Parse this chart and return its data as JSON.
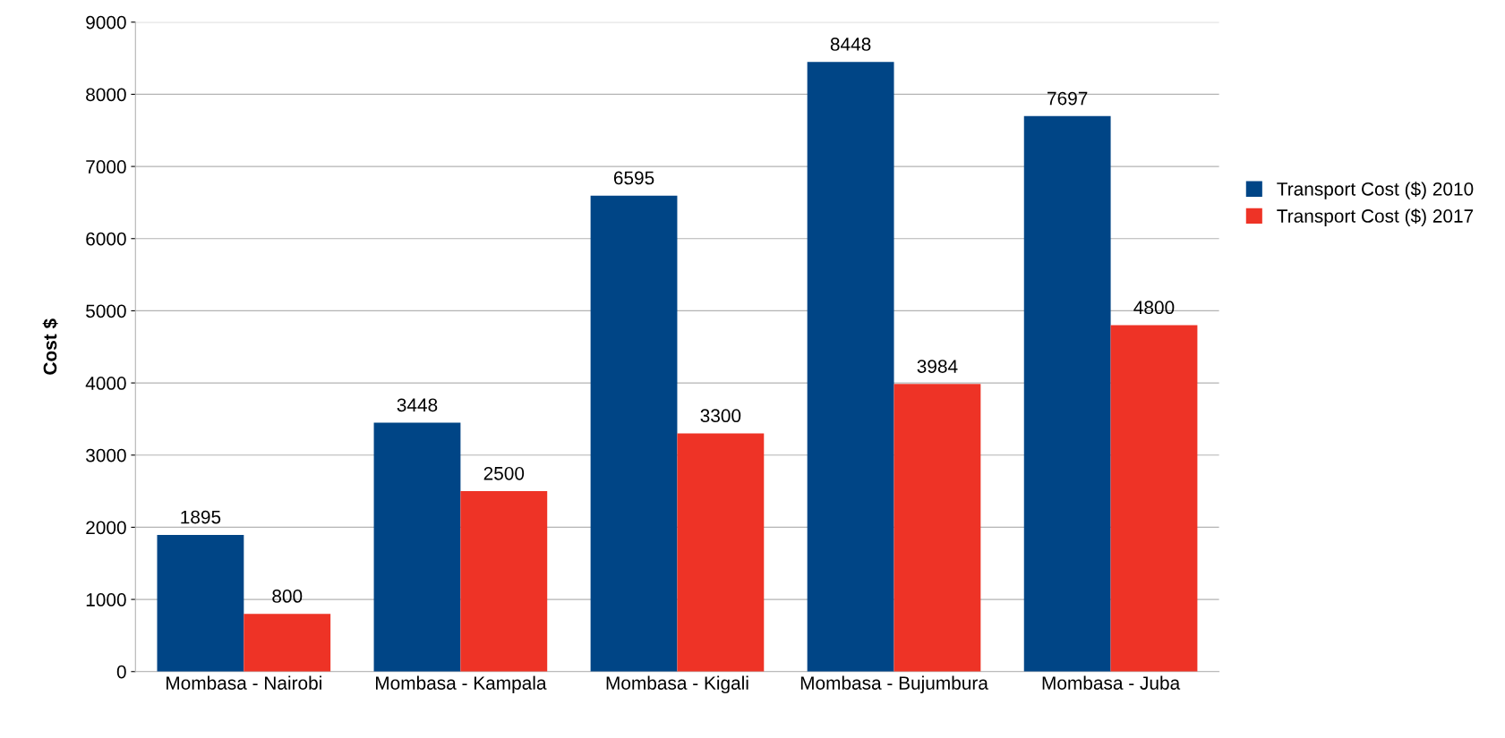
{
  "chart_data": {
    "type": "bar",
    "ylabel": "Cost $",
    "categories": [
      "Mombasa - Nairobi",
      "Mombasa - Kampala",
      "Mombasa - Kigali",
      "Mombasa - Bujumbura",
      "Mombasa - Juba"
    ],
    "series": [
      {
        "name": "Transport Cost ($) 2010",
        "color": "#004586",
        "values": [
          1895,
          3448,
          6595,
          8448,
          7697
        ]
      },
      {
        "name": "Transport Cost ($) 2017",
        "color": "#ee3326",
        "values": [
          800,
          2500,
          3300,
          3984,
          4800
        ]
      }
    ],
    "ylim": [
      0,
      9000
    ],
    "yticks": [
      0,
      1000,
      2000,
      3000,
      4000,
      5000,
      6000,
      7000,
      8000,
      9000
    ],
    "grid": "y",
    "legend": "right",
    "data_labels": true
  }
}
